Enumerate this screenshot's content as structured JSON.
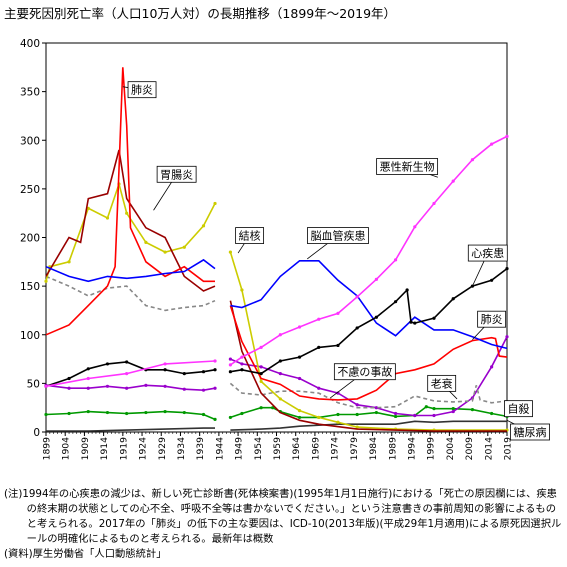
{
  "title": "主要死因別死亡率（人口10万人対）の長期推移（1899年～2019年）",
  "notes": {
    "note": "(注)1994年の心疾患の減少は、新しい死亡診断書(死体検案書)(1995年1月1日施行)における「死亡の原因欄には、疾患の終末期の状態としての心不全、呼吸不全等は書かないでください。」という注意書きの事前周知の影響によるものと考えられる。2017年の「肺炎」の低下の主な要因は、ICD-10(2013年版)(平成29年1月適用)による原死因選択ルールの明確化によるものと考えられる。最新年は概数",
    "source": "(資料)厚生労働省「人口動態統計」"
  },
  "chart_data": {
    "type": "line",
    "xlim": [
      1899,
      2019
    ],
    "ylim": [
      0,
      400
    ],
    "y_ticks": [
      "0",
      "50",
      "100",
      "150",
      "200",
      "250",
      "300",
      "350",
      "400"
    ],
    "x_ticks": [
      "1899",
      "1904",
      "1909",
      "1914",
      "1919",
      "1924",
      "1929",
      "1934",
      "1939",
      "1944",
      "1949",
      "1954",
      "1959",
      "1964",
      "1969",
      "1974",
      "1979",
      "1984",
      "1989",
      "1994",
      "1999",
      "2004",
      "2009",
      "2014",
      "2019"
    ],
    "grid": false,
    "legend": "none (series labelled directly on the plot)",
    "series": [
      {
        "name": "悪性新生物",
        "color": "#ff33ff",
        "marker": "dot",
        "points": [
          [
            1899,
            47
          ],
          [
            1910,
            55
          ],
          [
            1920,
            60
          ],
          [
            1930,
            70
          ],
          [
            1943,
            73
          ],
          [
            1947,
            69
          ],
          [
            1950,
            77
          ],
          [
            1955,
            87
          ],
          [
            1960,
            100
          ],
          [
            1965,
            108
          ],
          [
            1970,
            116
          ],
          [
            1975,
            122
          ],
          [
            1980,
            139
          ],
          [
            1985,
            157
          ],
          [
            1990,
            177
          ],
          [
            1995,
            211
          ],
          [
            2000,
            235
          ],
          [
            2005,
            258
          ],
          [
            2010,
            280
          ],
          [
            2015,
            296
          ],
          [
            2019,
            304
          ]
        ]
      },
      {
        "name": "心疾患",
        "color": "#000000",
        "marker": "dot",
        "points": [
          [
            1899,
            47
          ],
          [
            1905,
            55
          ],
          [
            1910,
            65
          ],
          [
            1915,
            70
          ],
          [
            1920,
            72
          ],
          [
            1925,
            64
          ],
          [
            1930,
            64
          ],
          [
            1935,
            60
          ],
          [
            1940,
            62
          ],
          [
            1943,
            64
          ],
          [
            1947,
            62
          ],
          [
            1950,
            64
          ],
          [
            1955,
            60
          ],
          [
            1960,
            73
          ],
          [
            1965,
            77
          ],
          [
            1970,
            87
          ],
          [
            1975,
            89
          ],
          [
            1980,
            107
          ],
          [
            1985,
            118
          ],
          [
            1990,
            134
          ],
          [
            1993,
            146
          ],
          [
            1994,
            113
          ],
          [
            1995,
            112
          ],
          [
            2000,
            117
          ],
          [
            2005,
            137
          ],
          [
            2010,
            150
          ],
          [
            2015,
            156
          ],
          [
            2019,
            168
          ]
        ]
      },
      {
        "name": "脳血管疾患",
        "color": "#0000ff",
        "marker": "none",
        "points": [
          [
            1899,
            170
          ],
          [
            1905,
            160
          ],
          [
            1910,
            155
          ],
          [
            1915,
            160
          ],
          [
            1920,
            158
          ],
          [
            1925,
            160
          ],
          [
            1930,
            163
          ],
          [
            1935,
            165
          ],
          [
            1940,
            177
          ],
          [
            1943,
            168
          ],
          [
            1947,
            130
          ],
          [
            1950,
            128
          ],
          [
            1955,
            136
          ],
          [
            1960,
            160
          ],
          [
            1965,
            176
          ],
          [
            1970,
            176
          ],
          [
            1975,
            156
          ],
          [
            1980,
            140
          ],
          [
            1985,
            112
          ],
          [
            1990,
            99
          ],
          [
            1995,
            118
          ],
          [
            2000,
            105
          ],
          [
            2005,
            105
          ],
          [
            2010,
            98
          ],
          [
            2015,
            90
          ],
          [
            2019,
            86
          ]
        ]
      },
      {
        "name": "肺炎",
        "color": "#ff0000",
        "marker": "none",
        "points": [
          [
            1899,
            100
          ],
          [
            1905,
            110
          ],
          [
            1910,
            130
          ],
          [
            1915,
            150
          ],
          [
            1917,
            170
          ],
          [
            1918,
            270
          ],
          [
            1919,
            375
          ],
          [
            1920,
            315
          ],
          [
            1921,
            210
          ],
          [
            1925,
            175
          ],
          [
            1930,
            160
          ],
          [
            1935,
            170
          ],
          [
            1940,
            155
          ],
          [
            1943,
            155
          ],
          [
            1947,
            130
          ],
          [
            1950,
            93
          ],
          [
            1955,
            55
          ],
          [
            1960,
            49
          ],
          [
            1965,
            37
          ],
          [
            1970,
            34
          ],
          [
            1975,
            33
          ],
          [
            1980,
            34
          ],
          [
            1985,
            43
          ],
          [
            1990,
            60
          ],
          [
            1995,
            64
          ],
          [
            2000,
            70
          ],
          [
            2005,
            85
          ],
          [
            2010,
            94
          ],
          [
            2015,
            97
          ],
          [
            2016,
            96
          ],
          [
            2017,
            78
          ],
          [
            2019,
            77
          ]
        ]
      },
      {
        "name": "胃腸炎",
        "color": "#990000",
        "marker": "none",
        "points": [
          [
            1899,
            160
          ],
          [
            1905,
            200
          ],
          [
            1908,
            195
          ],
          [
            1910,
            240
          ],
          [
            1915,
            245
          ],
          [
            1918,
            290
          ],
          [
            1920,
            240
          ],
          [
            1925,
            210
          ],
          [
            1930,
            200
          ],
          [
            1935,
            160
          ],
          [
            1940,
            145
          ],
          [
            1943,
            150
          ],
          [
            1947,
            135
          ],
          [
            1950,
            83
          ],
          [
            1955,
            40
          ],
          [
            1960,
            20
          ],
          [
            1965,
            12
          ],
          [
            1970,
            8
          ],
          [
            1980,
            3
          ],
          [
            1990,
            2
          ],
          [
            2000,
            1
          ],
          [
            2019,
            1
          ]
        ]
      },
      {
        "name": "結核",
        "color": "#cccc00",
        "marker": "dot",
        "points": [
          [
            1899,
            155
          ],
          [
            1900,
            170
          ],
          [
            1905,
            175
          ],
          [
            1910,
            230
          ],
          [
            1915,
            220
          ],
          [
            1918,
            255
          ],
          [
            1920,
            225
          ],
          [
            1925,
            195
          ],
          [
            1930,
            185
          ],
          [
            1935,
            190
          ],
          [
            1940,
            212
          ],
          [
            1943,
            235
          ],
          [
            1947,
            185
          ],
          [
            1950,
            146
          ],
          [
            1955,
            52
          ],
          [
            1960,
            34
          ],
          [
            1965,
            22
          ],
          [
            1970,
            15
          ],
          [
            1975,
            10
          ],
          [
            1980,
            5
          ],
          [
            1990,
            3
          ],
          [
            2000,
            2
          ],
          [
            2019,
            2
          ]
        ]
      },
      {
        "name": "不慮の事故",
        "color": "#888888",
        "marker": "none",
        "points": [
          [
            1899,
            160
          ],
          [
            1905,
            150
          ],
          [
            1910,
            140
          ],
          [
            1915,
            148
          ],
          [
            1920,
            150
          ],
          [
            1925,
            130
          ],
          [
            1930,
            125
          ],
          [
            1935,
            128
          ],
          [
            1940,
            130
          ],
          [
            1943,
            135
          ],
          [
            1947,
            50
          ],
          [
            1950,
            40
          ],
          [
            1955,
            38
          ],
          [
            1960,
            42
          ],
          [
            1965,
            42
          ],
          [
            1970,
            40
          ],
          [
            1975,
            30
          ],
          [
            1980,
            25
          ],
          [
            1985,
            25
          ],
          [
            1990,
            26
          ],
          [
            1995,
            37
          ],
          [
            2000,
            32
          ],
          [
            2005,
            31
          ],
          [
            2010,
            32
          ],
          [
            2011,
            48
          ],
          [
            2012,
            33
          ],
          [
            2015,
            30
          ],
          [
            2019,
            32
          ]
        ]
      },
      {
        "name": "老衰",
        "color": "#9900cc",
        "marker": "dot",
        "points": [
          [
            1899,
            48
          ],
          [
            1905,
            45
          ],
          [
            1910,
            45
          ],
          [
            1915,
            47
          ],
          [
            1920,
            45
          ],
          [
            1925,
            48
          ],
          [
            1930,
            47
          ],
          [
            1935,
            44
          ],
          [
            1940,
            43
          ],
          [
            1943,
            45
          ],
          [
            1947,
            75
          ],
          [
            1950,
            70
          ],
          [
            1955,
            67
          ],
          [
            1960,
            60
          ],
          [
            1965,
            55
          ],
          [
            1970,
            45
          ],
          [
            1975,
            40
          ],
          [
            1980,
            28
          ],
          [
            1985,
            25
          ],
          [
            1990,
            19
          ],
          [
            1995,
            17
          ],
          [
            2000,
            17
          ],
          [
            2005,
            21
          ],
          [
            2010,
            35
          ],
          [
            2015,
            67
          ],
          [
            2019,
            98
          ]
        ]
      },
      {
        "name": "自殺",
        "color": "#009900",
        "marker": "dot",
        "points": [
          [
            1899,
            18
          ],
          [
            1905,
            19
          ],
          [
            1910,
            21
          ],
          [
            1915,
            20
          ],
          [
            1920,
            19
          ],
          [
            1925,
            20
          ],
          [
            1930,
            21
          ],
          [
            1935,
            20
          ],
          [
            1940,
            18
          ],
          [
            1943,
            13
          ],
          [
            1947,
            15
          ],
          [
            1950,
            19
          ],
          [
            1955,
            25
          ],
          [
            1958,
            25
          ],
          [
            1960,
            21
          ],
          [
            1965,
            15
          ],
          [
            1970,
            15
          ],
          [
            1975,
            18
          ],
          [
            1980,
            18
          ],
          [
            1985,
            20
          ],
          [
            1990,
            16
          ],
          [
            1995,
            17
          ],
          [
            1998,
            26
          ],
          [
            2000,
            24
          ],
          [
            2005,
            24
          ],
          [
            2010,
            23
          ],
          [
            2015,
            19
          ],
          [
            2019,
            16
          ]
        ]
      },
      {
        "name": "糖尿病",
        "color": "#333333",
        "marker": "none",
        "points": [
          [
            1899,
            1
          ],
          [
            1910,
            1
          ],
          [
            1920,
            2
          ],
          [
            1930,
            3
          ],
          [
            1940,
            4
          ],
          [
            1943,
            4
          ],
          [
            1947,
            2
          ],
          [
            1955,
            3
          ],
          [
            1960,
            4
          ],
          [
            1965,
            6
          ],
          [
            1970,
            7
          ],
          [
            1975,
            8
          ],
          [
            1980,
            8
          ],
          [
            1985,
            8
          ],
          [
            1990,
            8
          ],
          [
            1995,
            11
          ],
          [
            2000,
            10
          ],
          [
            2005,
            11
          ],
          [
            2010,
            11
          ],
          [
            2015,
            11
          ],
          [
            2019,
            11
          ]
        ]
      }
    ],
    "annotations": [
      {
        "text": "肺炎",
        "x": 1924,
        "y": 352,
        "target_x": 1919,
        "target_y": 355
      },
      {
        "text": "胃腸炎",
        "x": 1933,
        "y": 265,
        "target_x": 1927,
        "target_y": 228
      },
      {
        "text": "悪性新生物",
        "x": 1993,
        "y": 273,
        "target_x": 2001,
        "target_y": 262
      },
      {
        "text": "結核",
        "x": 1952,
        "y": 202,
        "target_x": 1949,
        "target_y": 184
      },
      {
        "text": "脳血管疾患",
        "x": 1975,
        "y": 202,
        "target_x": 1967,
        "target_y": 178
      },
      {
        "text": "心疾患",
        "x": 2014,
        "y": 184,
        "target_x": 2010,
        "target_y": 150
      },
      {
        "text": "肺炎",
        "x": 2015,
        "y": 116,
        "target_x": 2010,
        "target_y": 95
      },
      {
        "text": "不慮の事故",
        "x": 1982,
        "y": 62,
        "target_x": 1973,
        "target_y": 35
      },
      {
        "text": "老衰",
        "x": 2002,
        "y": 50,
        "target_x": 2006,
        "target_y": 34
      },
      {
        "text": "自殺",
        "x": 2022,
        "y": 24,
        "target_x": 2019,
        "target_y": 17
      },
      {
        "text": "糖尿病",
        "x": 2025,
        "y": 0,
        "target_x": 2019,
        "target_y": 12
      }
    ]
  }
}
